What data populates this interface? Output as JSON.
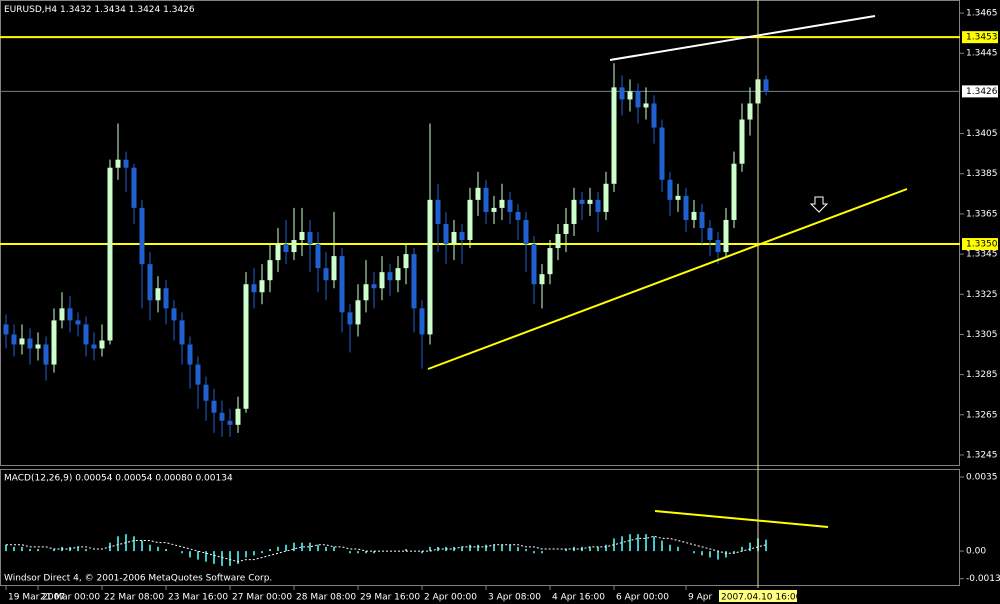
{
  "chart_data": [
    {
      "type": "candlestick",
      "title": "EURUSD,H4",
      "open": [
        1.331,
        1.3305,
        1.33,
        1.3303,
        1.3298,
        1.33,
        1.329,
        1.3312,
        1.3318,
        1.3312,
        1.331,
        1.33,
        1.3298,
        1.3302,
        1.3388,
        1.3392,
        1.3388,
        1.3368,
        1.334,
        1.3322,
        1.3328,
        1.3318,
        1.3312,
        1.33,
        1.329,
        1.328,
        1.3272,
        1.3266,
        1.3262,
        1.326,
        1.3268,
        1.333,
        1.3326,
        1.3332,
        1.3342,
        1.335,
        1.3346,
        1.3352,
        1.3356,
        1.335,
        1.3338,
        1.3332,
        1.3344,
        1.3316,
        1.331,
        1.3322,
        1.333,
        1.3328,
        1.3336,
        1.3332,
        1.3338,
        1.3345,
        1.3318,
        1.3305,
        1.3372,
        1.336,
        1.335,
        1.3356,
        1.3352,
        1.3372,
        1.3378,
        1.3366,
        1.3368,
        1.3372,
        1.3366,
        1.3362,
        1.335,
        1.333,
        1.3335,
        1.3348,
        1.3355,
        1.336,
        1.3372,
        1.337,
        1.3372,
        1.3366,
        1.338,
        1.3428,
        1.3422,
        1.3426,
        1.3418,
        1.342,
        1.3408,
        1.3382,
        1.3372,
        1.3374,
        1.3362,
        1.3366,
        1.3358,
        1.3352,
        1.3346,
        1.3362,
        1.339,
        1.3412,
        1.342,
        1.3432
      ],
      "high": [
        1.3315,
        1.331,
        1.331,
        1.3308,
        1.3306,
        1.3304,
        1.3318,
        1.3326,
        1.3324,
        1.3316,
        1.3314,
        1.3306,
        1.331,
        1.3392,
        1.341,
        1.3396,
        1.339,
        1.3372,
        1.3346,
        1.3334,
        1.3332,
        1.3322,
        1.3316,
        1.3304,
        1.3294,
        1.3284,
        1.3278,
        1.3272,
        1.3268,
        1.3274,
        1.3336,
        1.3338,
        1.334,
        1.335,
        1.3358,
        1.3362,
        1.3368,
        1.3368,
        1.3362,
        1.3356,
        1.3346,
        1.3366,
        1.3348,
        1.332,
        1.333,
        1.3342,
        1.3336,
        1.3344,
        1.334,
        1.3344,
        1.335,
        1.3348,
        1.3322,
        1.341,
        1.338,
        1.3366,
        1.3362,
        1.336,
        1.3378,
        1.3386,
        1.3382,
        1.3374,
        1.338,
        1.3376,
        1.337,
        1.3366,
        1.3354,
        1.334,
        1.3352,
        1.336,
        1.3368,
        1.3378,
        1.3376,
        1.3378,
        1.3376,
        1.3386,
        1.344,
        1.3434,
        1.3432,
        1.343,
        1.3428,
        1.3424,
        1.3412,
        1.3386,
        1.338,
        1.3378,
        1.3372,
        1.337,
        1.3362,
        1.3356,
        1.3368,
        1.3396,
        1.342,
        1.3428,
        1.344,
        1.3434
      ],
      "low": [
        1.3298,
        1.3294,
        1.3295,
        1.329,
        1.3292,
        1.3282,
        1.3286,
        1.3308,
        1.3306,
        1.3304,
        1.3294,
        1.3292,
        1.3294,
        1.33,
        1.3382,
        1.3376,
        1.336,
        1.3318,
        1.3312,
        1.3316,
        1.331,
        1.3302,
        1.329,
        1.3278,
        1.3268,
        1.3262,
        1.3256,
        1.3254,
        1.3254,
        1.3256,
        1.3266,
        1.3318,
        1.332,
        1.3326,
        1.3336,
        1.334,
        1.3342,
        1.3344,
        1.3336,
        1.3326,
        1.3322,
        1.3328,
        1.3306,
        1.3296,
        1.3304,
        1.3316,
        1.3318,
        1.3322,
        1.3324,
        1.3326,
        1.333,
        1.3306,
        1.3288,
        1.33,
        1.3346,
        1.334,
        1.3342,
        1.334,
        1.3348,
        1.3364,
        1.336,
        1.336,
        1.3362,
        1.336,
        1.3352,
        1.3336,
        1.332,
        1.3318,
        1.333,
        1.3342,
        1.3346,
        1.3354,
        1.3362,
        1.3364,
        1.3356,
        1.3362,
        1.3376,
        1.3414,
        1.3416,
        1.341,
        1.3412,
        1.34,
        1.3376,
        1.3364,
        1.3366,
        1.3356,
        1.3358,
        1.335,
        1.3344,
        1.334,
        1.3344,
        1.3358,
        1.3386,
        1.3404,
        1.3414,
        1.3424
      ],
      "close": [
        1.3305,
        1.33,
        1.3303,
        1.3298,
        1.33,
        1.329,
        1.3312,
        1.3318,
        1.3312,
        1.331,
        1.33,
        1.3298,
        1.3302,
        1.3388,
        1.3392,
        1.3388,
        1.3368,
        1.334,
        1.3322,
        1.3328,
        1.3318,
        1.3312,
        1.33,
        1.329,
        1.328,
        1.3272,
        1.3266,
        1.3262,
        1.326,
        1.3268,
        1.333,
        1.3326,
        1.3332,
        1.3342,
        1.335,
        1.3346,
        1.3352,
        1.3356,
        1.335,
        1.3338,
        1.3332,
        1.3344,
        1.3316,
        1.331,
        1.3322,
        1.333,
        1.3328,
        1.3336,
        1.3332,
        1.3338,
        1.3345,
        1.3318,
        1.3305,
        1.3372,
        1.336,
        1.335,
        1.3356,
        1.3352,
        1.3372,
        1.3378,
        1.3366,
        1.3368,
        1.3372,
        1.3366,
        1.3362,
        1.335,
        1.333,
        1.3335,
        1.3348,
        1.3355,
        1.336,
        1.3372,
        1.337,
        1.3372,
        1.3366,
        1.338,
        1.3428,
        1.3422,
        1.3426,
        1.3418,
        1.342,
        1.3408,
        1.3382,
        1.3372,
        1.3374,
        1.3362,
        1.3366,
        1.3358,
        1.3352,
        1.3346,
        1.3362,
        1.339,
        1.3412,
        1.342,
        1.3432,
        1.3426
      ],
      "up_color": "#ccffcc",
      "down_color": "#2060d0",
      "xlim": [
        -0.75,
        119.25
      ],
      "xticks": [
        {
          "value": 0,
          "label": "19 Mar 2007"
        },
        {
          "value": 4,
          "label": "21 Mar 00:00"
        },
        {
          "value": 12,
          "label": "22 Mar 08:00"
        },
        {
          "value": 20,
          "label": "23 Mar 16:00"
        },
        {
          "value": 28,
          "label": "27 Mar 00:00"
        },
        {
          "value": 36,
          "label": "28 Mar 08:00"
        },
        {
          "value": 44,
          "label": "29 Mar 16:00"
        },
        {
          "value": 52,
          "label": "2 Apr 00:00"
        },
        {
          "value": 60,
          "label": "3 Apr 08:00"
        },
        {
          "value": 68,
          "label": "4 Apr 16:00"
        },
        {
          "value": 76,
          "label": "6 Apr 00:00"
        },
        {
          "value": 85,
          "label": "9 Apr"
        }
      ],
      "ylim": [
        1.324,
        1.34715
      ],
      "yticks": [
        1.3465,
        1.3445,
        1.3405,
        1.3385,
        1.3365,
        1.3345,
        1.3325,
        1.3305,
        1.3285,
        1.3265,
        1.3245
      ],
      "levels": [
        1.3453,
        {
          "value": 1.335,
          "label": "1.3350"
        }
      ],
      "level_color": "#ffff00",
      "cursor_label": "2007.04.10 16:00"
    },
    {
      "type": "macd",
      "title": "MACD(12,26,9)  0.00054 0.00054 0.00080 0.00134",
      "values": [
        0.0003,
        0.0002,
        0.0002,
        0.0001,
        0.0001,
        0,
        0.0001,
        0.0002,
        0.0002,
        0.0002,
        0.0001,
        0,
        0,
        0.0004,
        0.0007,
        0.0008,
        0.0007,
        0.0005,
        0.0003,
        0.0002,
        0.0001,
        0,
        -0.0001,
        -0.0003,
        -0.0004,
        -0.0005,
        -0.0006,
        -0.0007,
        -0.0007,
        -0.0006,
        -0.0003,
        -0.0002,
        -0.0001,
        0.0001,
        0.0002,
        0.0003,
        0.0004,
        0.0004,
        0.0004,
        0.0003,
        0.0002,
        0.0002,
        0,
        -0.0001,
        -0.0001,
        -0.0001,
        -0.0001,
        0,
        0,
        0,
        0.0001,
        0,
        -0.0001,
        0.0002,
        0.0002,
        0.0002,
        0.0002,
        0.0002,
        0.0003,
        0.0003,
        0.0003,
        0.0003,
        0.0003,
        0.0003,
        0.0002,
        0.0001,
        -0.0001,
        -0.0001,
        0,
        0,
        0.0001,
        0.0002,
        0.0002,
        0.0002,
        0.0002,
        0.0003,
        0.0006,
        0.0007,
        0.0008,
        0.0008,
        0.0008,
        0.0007,
        0.0005,
        0.0003,
        0.0002,
        0,
        -0.0001,
        -0.0002,
        -0.0003,
        -0.0004,
        -0.0003,
        -0.0001,
        0.0002,
        0.0004,
        0.0006,
        0.00054
      ],
      "signal": [
        0.0003,
        0.0003,
        0.0003,
        0.0002,
        0.0002,
        0.0002,
        0.0001,
        0.0001,
        0.0001,
        0.0002,
        0.0002,
        0.0001,
        0.0001,
        0.0002,
        0.0003,
        0.0004,
        0.0005,
        0.0005,
        0.0005,
        0.0004,
        0.0004,
        0.0003,
        0.0002,
        0.0001,
        0,
        -0.0001,
        -0.0002,
        -0.0003,
        -0.0004,
        -0.0005,
        -0.0004,
        -0.0004,
        -0.0003,
        -0.0002,
        -0.0001,
        0,
        0.0001,
        0.0002,
        0.0002,
        0.0003,
        0.0003,
        0.0002,
        0.0002,
        0.0001,
        0.0001,
        0,
        0,
        0,
        0,
        0,
        0,
        0,
        0,
        0,
        0.0001,
        0.0001,
        0.0001,
        0.0002,
        0.0002,
        0.0002,
        0.0002,
        0.0003,
        0.0003,
        0.0003,
        0.0003,
        0.0002,
        0.0002,
        0.0001,
        0.0001,
        0.0001,
        0.0001,
        0.0001,
        0.0001,
        0.0002,
        0.0002,
        0.0002,
        0.0003,
        0.0004,
        0.0005,
        0.0006,
        0.0006,
        0.0007,
        0.0006,
        0.0006,
        0.0005,
        0.0004,
        0.0003,
        0.0002,
        0.0001,
        0,
        -0.0001,
        -0.0001,
        0,
        0.0001,
        0.0002,
        0.0003
      ],
      "color": "#40c8c8",
      "signal_color": "#ffffff",
      "ylim": [
        -0.0016,
        0.00383
      ],
      "yticks": [
        0.0035,
        {
          "value": 0,
          "label": "0.00"
        },
        -0.0013
      ],
      "copyright": "Windsor Direct 4, © 2001-2006 MetaQuotes Software Corp."
    }
  ]
}
